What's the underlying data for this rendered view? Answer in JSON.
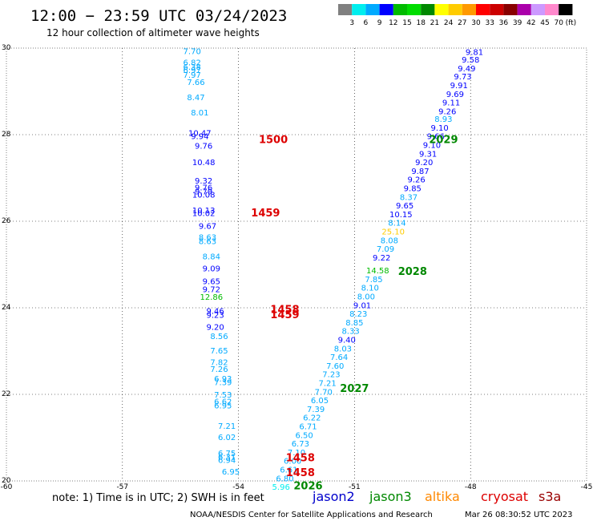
{
  "title": "12:00 − 23:59 UTC 03/24/2023",
  "subtitle": "12 hour collection of altimeter wave heights",
  "note": "note: 1) Time is in UTC; 2) SWH is in feet",
  "credit": "NOAA/NESDIS Center for Satellite Applications and Research",
  "timestamp": "Mar 26 08:30:52 UTC 2023",
  "satellites": [
    {
      "name": "jason2",
      "color": "#0000cc"
    },
    {
      "name": "jason3",
      "color": "#008800"
    },
    {
      "name": "altika",
      "color": "#ff8800"
    },
    {
      "name": "cryosat",
      "color": "#dd0000"
    },
    {
      "name": "s3a",
      "color": "#990000"
    }
  ],
  "color_scale": {
    "labels": [
      "3",
      "6",
      "9",
      "12",
      "15",
      "18",
      "21",
      "24",
      "27",
      "30",
      "33",
      "36",
      "39",
      "42",
      "45",
      "70"
    ],
    "unit": "(ft)",
    "colors": [
      "#808080",
      "#00eeee",
      "#00aaff",
      "#0000ff",
      "#00bb00",
      "#00dd00",
      "#008800",
      "#ffff00",
      "#ffcc00",
      "#ff9900",
      "#ff0000",
      "#cc0000",
      "#880000",
      "#aa00aa",
      "#cc99ff",
      "#ff88cc",
      "#000000"
    ]
  },
  "chart_data": {
    "type": "scatter",
    "xlim": [
      -60,
      -45
    ],
    "ylim": [
      20,
      30
    ],
    "x_ticks": [
      "-60",
      "-57",
      "-54",
      "-51",
      "-48",
      "-45"
    ],
    "y_ticks": [
      "20",
      "22",
      "24",
      "26",
      "28",
      "30"
    ],
    "grid": true,
    "points": [
      {
        "lon": -55.2,
        "lat": 29.92,
        "label": "7.70"
      },
      {
        "lon": -55.2,
        "lat": 29.66,
        "label": "6.82"
      },
      {
        "lon": -55.2,
        "lat": 29.56,
        "label": "6.38"
      },
      {
        "lon": -55.2,
        "lat": 29.48,
        "label": "6.97"
      },
      {
        "lon": -55.2,
        "lat": 29.37,
        "label": "7.97"
      },
      {
        "lon": -55.1,
        "lat": 29.2,
        "label": "7.66"
      },
      {
        "lon": -55.1,
        "lat": 28.85,
        "label": "8.47"
      },
      {
        "lon": -55.0,
        "lat": 28.5,
        "label": "8.01"
      },
      {
        "lon": -55.0,
        "lat": 28.03,
        "label": "10.47"
      },
      {
        "lon": -55.0,
        "lat": 27.95,
        "label": "9.94"
      },
      {
        "lon": -54.9,
        "lat": 27.73,
        "label": "9.76"
      },
      {
        "lon": -54.9,
        "lat": 27.35,
        "label": "10.48"
      },
      {
        "lon": -54.9,
        "lat": 26.93,
        "label": "9.32"
      },
      {
        "lon": -54.9,
        "lat": 26.77,
        "label": "9.76"
      },
      {
        "lon": -54.9,
        "lat": 26.68,
        "label": "9.79"
      },
      {
        "lon": -54.9,
        "lat": 26.6,
        "label": "10.08"
      },
      {
        "lon": -54.9,
        "lat": 26.24,
        "label": "10.13"
      },
      {
        "lon": -54.9,
        "lat": 26.18,
        "label": "10.02"
      },
      {
        "lon": -54.8,
        "lat": 25.88,
        "label": "9.67"
      },
      {
        "lon": -54.8,
        "lat": 25.62,
        "label": "8.63"
      },
      {
        "lon": -54.8,
        "lat": 25.53,
        "label": "8.63"
      },
      {
        "lon": -54.7,
        "lat": 25.18,
        "label": "8.84"
      },
      {
        "lon": -54.7,
        "lat": 24.9,
        "label": "9.09"
      },
      {
        "lon": -54.7,
        "lat": 24.6,
        "label": "9.65"
      },
      {
        "lon": -54.7,
        "lat": 24.42,
        "label": "9.72"
      },
      {
        "lon": -54.7,
        "lat": 24.24,
        "label": "12.86"
      },
      {
        "lon": -54.6,
        "lat": 23.92,
        "label": "9.46"
      },
      {
        "lon": -54.6,
        "lat": 23.82,
        "label": "9.23"
      },
      {
        "lon": -54.6,
        "lat": 23.55,
        "label": "9.20"
      },
      {
        "lon": -54.5,
        "lat": 23.33,
        "label": "8.56"
      },
      {
        "lon": -54.5,
        "lat": 23.0,
        "label": "7.65"
      },
      {
        "lon": -54.5,
        "lat": 22.73,
        "label": "7.82"
      },
      {
        "lon": -54.5,
        "lat": 22.57,
        "label": "7.26"
      },
      {
        "lon": -54.4,
        "lat": 22.35,
        "label": "6.93"
      },
      {
        "lon": -54.4,
        "lat": 22.27,
        "label": "7.39"
      },
      {
        "lon": -54.4,
        "lat": 21.98,
        "label": "7.53"
      },
      {
        "lon": -54.4,
        "lat": 21.82,
        "label": "6.62"
      },
      {
        "lon": -54.4,
        "lat": 21.73,
        "label": "6.95"
      },
      {
        "lon": -54.3,
        "lat": 21.26,
        "label": "7.21"
      },
      {
        "lon": -54.3,
        "lat": 21.0,
        "label": "6.02"
      },
      {
        "lon": -54.3,
        "lat": 20.63,
        "label": "6.75"
      },
      {
        "lon": -54.3,
        "lat": 20.55,
        "label": "6.31"
      },
      {
        "lon": -54.3,
        "lat": 20.47,
        "label": "6.94"
      },
      {
        "lon": -54.2,
        "lat": 20.2,
        "label": "6.95"
      },
      {
        "lon": -47.9,
        "lat": 29.9,
        "label": "9.81"
      },
      {
        "lon": -48.0,
        "lat": 29.72,
        "label": "9.58"
      },
      {
        "lon": -48.1,
        "lat": 29.52,
        "label": "9.49"
      },
      {
        "lon": -48.2,
        "lat": 29.33,
        "label": "9.73"
      },
      {
        "lon": -48.3,
        "lat": 29.13,
        "label": "9.91"
      },
      {
        "lon": -48.4,
        "lat": 28.93,
        "label": "9.69"
      },
      {
        "lon": -48.5,
        "lat": 28.73,
        "label": "9.11"
      },
      {
        "lon": -48.6,
        "lat": 28.53,
        "label": "9.26"
      },
      {
        "lon": -48.7,
        "lat": 28.35,
        "label": "8.93"
      },
      {
        "lon": -48.8,
        "lat": 28.15,
        "label": "9.10"
      },
      {
        "lon": -48.9,
        "lat": 27.95,
        "label": "9.66"
      },
      {
        "lon": -49.0,
        "lat": 27.75,
        "label": "9.10"
      },
      {
        "lon": -49.1,
        "lat": 27.55,
        "label": "9.31"
      },
      {
        "lon": -49.2,
        "lat": 27.35,
        "label": "9.20"
      },
      {
        "lon": -49.3,
        "lat": 27.15,
        "label": "9.87"
      },
      {
        "lon": -49.4,
        "lat": 26.95,
        "label": "9.26"
      },
      {
        "lon": -49.5,
        "lat": 26.75,
        "label": "9.85"
      },
      {
        "lon": -49.6,
        "lat": 26.55,
        "label": "8.37"
      },
      {
        "lon": -49.7,
        "lat": 26.35,
        "label": "9.65"
      },
      {
        "lon": -49.8,
        "lat": 26.15,
        "label": "10.15"
      },
      {
        "lon": -49.9,
        "lat": 25.95,
        "label": "8.14"
      },
      {
        "lon": -50.0,
        "lat": 25.75,
        "label": "25.10"
      },
      {
        "lon": -50.1,
        "lat": 25.55,
        "label": "8.08"
      },
      {
        "lon": -50.2,
        "lat": 25.35,
        "label": "7.09"
      },
      {
        "lon": -50.3,
        "lat": 25.15,
        "label": "9.22"
      },
      {
        "lon": -50.4,
        "lat": 24.85,
        "label": "14.58"
      },
      {
        "lon": -50.5,
        "lat": 24.65,
        "label": "7.85"
      },
      {
        "lon": -50.6,
        "lat": 24.45,
        "label": "8.10"
      },
      {
        "lon": -50.7,
        "lat": 24.25,
        "label": "8.00"
      },
      {
        "lon": -50.8,
        "lat": 24.05,
        "label": "9.01"
      },
      {
        "lon": -50.9,
        "lat": 23.85,
        "label": "8.23"
      },
      {
        "lon": -51.0,
        "lat": 23.65,
        "label": "8.85"
      },
      {
        "lon": -51.1,
        "lat": 23.45,
        "label": "8.33"
      },
      {
        "lon": -51.2,
        "lat": 23.25,
        "label": "9.40"
      },
      {
        "lon": -51.3,
        "lat": 23.05,
        "label": "8.03"
      },
      {
        "lon": -51.4,
        "lat": 22.85,
        "label": "7.64"
      },
      {
        "lon": -51.5,
        "lat": 22.65,
        "label": "7.60"
      },
      {
        "lon": -51.6,
        "lat": 22.45,
        "label": "7.23"
      },
      {
        "lon": -51.7,
        "lat": 22.25,
        "label": "7.21"
      },
      {
        "lon": -51.8,
        "lat": 22.05,
        "label": "7.70"
      },
      {
        "lon": -51.9,
        "lat": 21.85,
        "label": "6.05"
      },
      {
        "lon": -52.0,
        "lat": 21.65,
        "label": "7.39"
      },
      {
        "lon": -52.1,
        "lat": 21.45,
        "label": "6.22"
      },
      {
        "lon": -52.2,
        "lat": 21.25,
        "label": "6.71"
      },
      {
        "lon": -52.3,
        "lat": 21.05,
        "label": "6.50"
      },
      {
        "lon": -52.4,
        "lat": 20.85,
        "label": "6.73"
      },
      {
        "lon": -52.5,
        "lat": 20.65,
        "label": "7.10"
      },
      {
        "lon": -52.6,
        "lat": 20.45,
        "label": "6.00"
      },
      {
        "lon": -52.7,
        "lat": 20.25,
        "label": "6.61"
      },
      {
        "lon": -52.8,
        "lat": 20.05,
        "label": "6.80"
      },
      {
        "lon": -52.9,
        "lat": 19.85,
        "label": "5.96"
      }
    ],
    "time_labels": [
      {
        "lon": -53.1,
        "lat": 27.9,
        "label": "1500",
        "satellite": "cryosat"
      },
      {
        "lon": -53.3,
        "lat": 26.2,
        "label": "1459",
        "satellite": "cryosat"
      },
      {
        "lon": -52.8,
        "lat": 23.97,
        "label": "1458",
        "satellite": "cryosat"
      },
      {
        "lon": -52.8,
        "lat": 23.85,
        "label": "1459",
        "satellite": "cryosat"
      },
      {
        "lon": -52.4,
        "lat": 20.55,
        "label": "1458",
        "satellite": "cryosat"
      },
      {
        "lon": -52.4,
        "lat": 20.2,
        "label": "1458",
        "satellite": "cryosat"
      },
      {
        "lon": -48.7,
        "lat": 27.9,
        "label": "2029",
        "satellite": "jason3"
      },
      {
        "lon": -49.5,
        "lat": 24.85,
        "label": "2028",
        "satellite": "jason3"
      },
      {
        "lon": -51.0,
        "lat": 22.15,
        "label": "2027",
        "satellite": "jason3"
      },
      {
        "lon": -52.2,
        "lat": 19.9,
        "label": "2026",
        "satellite": "jason3"
      }
    ]
  }
}
